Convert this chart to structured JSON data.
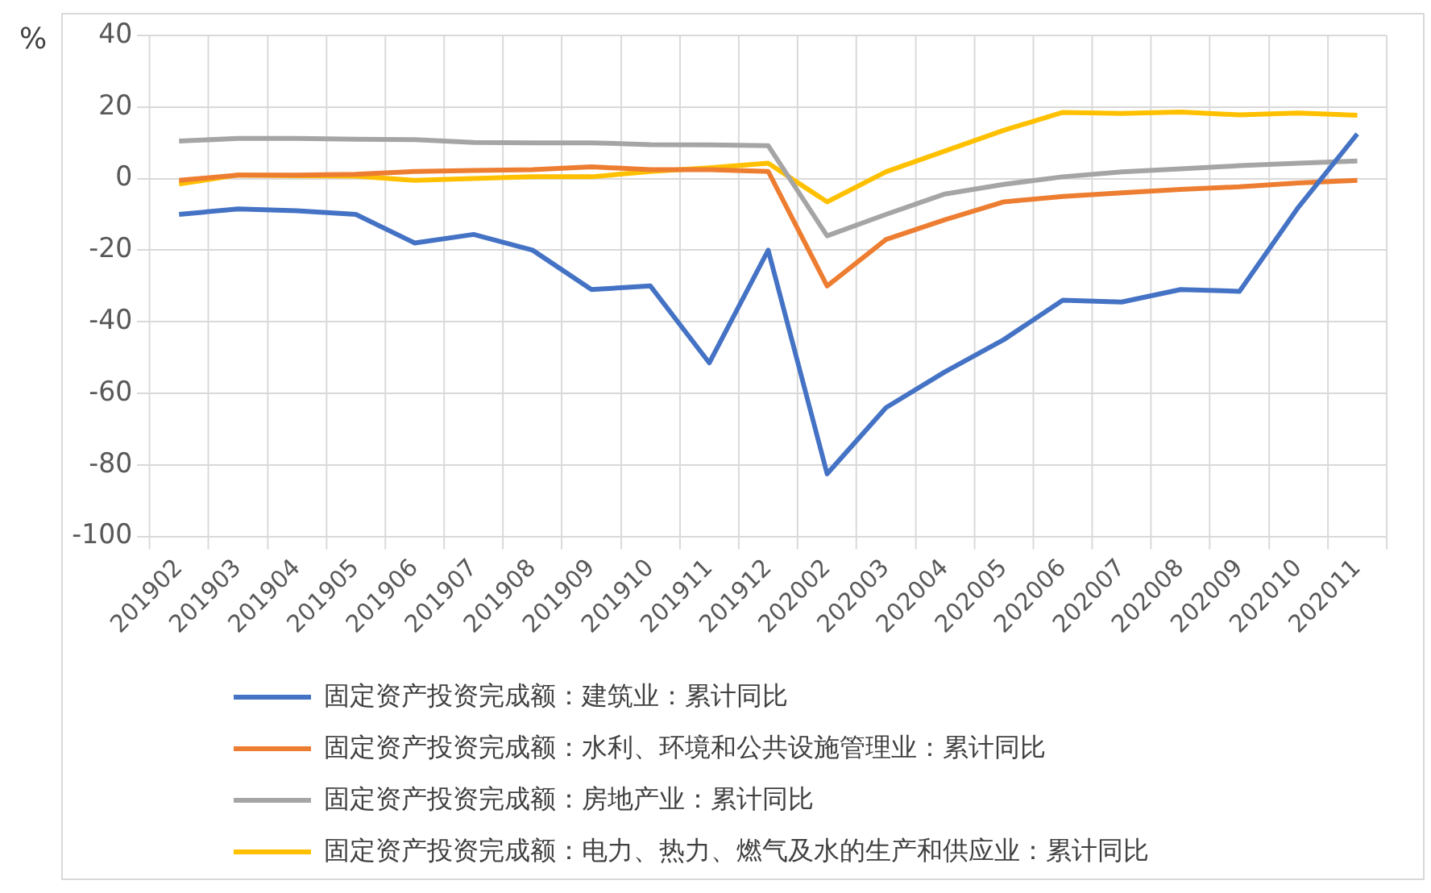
{
  "chart_data": {
    "type": "line",
    "ylabel": "%",
    "categories": [
      "201902",
      "201903",
      "201904",
      "201905",
      "201906",
      "201907",
      "201908",
      "201909",
      "201910",
      "201911",
      "201912",
      "202002",
      "202003",
      "202004",
      "202005",
      "202006",
      "202007",
      "202008",
      "202009",
      "202010",
      "202011"
    ],
    "series": [
      {
        "name": "固定资产投资完成额：建筑业：累计同比",
        "color": "#4472c4",
        "values": [
          -10,
          -8.5,
          -9,
          -10,
          -18,
          -15.6,
          -20,
          -31,
          -30,
          -51.5,
          -20,
          -82.5,
          -64,
          -54,
          -45,
          -34,
          -34.5,
          -31,
          -31.5,
          -8,
          12.5
        ]
      },
      {
        "name": "固定资产投资完成额：水利、环境和公共设施管理业：累计同比",
        "color": "#ed7d31",
        "values": [
          -0.5,
          1,
          1,
          1.2,
          2,
          2.3,
          2.5,
          3.3,
          2.5,
          2.5,
          2,
          -30,
          -17,
          -11.5,
          -6.5,
          -5,
          -4,
          -3,
          -2.3,
          -1.2,
          -0.5
        ]
      },
      {
        "name": "固定资产投资完成额：房地产业：累计同比",
        "color": "#a5a5a5",
        "values": [
          10.5,
          11.2,
          11.2,
          11,
          10.9,
          10.1,
          10,
          10,
          9.5,
          9.4,
          9.2,
          -16,
          -10,
          -4.3,
          -1.6,
          0.5,
          1.9,
          2.7,
          3.6,
          4.3,
          4.9
        ]
      },
      {
        "name": "固定资产投资完成额：电力、热力、燃气及水的生产和供应业：累计同比",
        "color": "#ffc000",
        "values": [
          -1.5,
          1,
          0.8,
          0.7,
          -0.5,
          0,
          0.5,
          0.5,
          2,
          3,
          4.3,
          -6.5,
          1.9,
          7.7,
          13.5,
          18.5,
          18.2,
          18.6,
          17.8,
          18.3,
          17.7
        ]
      }
    ],
    "ylim": [
      -100,
      40
    ],
    "yticks": [
      -100,
      -80,
      -60,
      -40,
      -20,
      0,
      20,
      40
    ],
    "grid": true,
    "legend": "bottom"
  }
}
